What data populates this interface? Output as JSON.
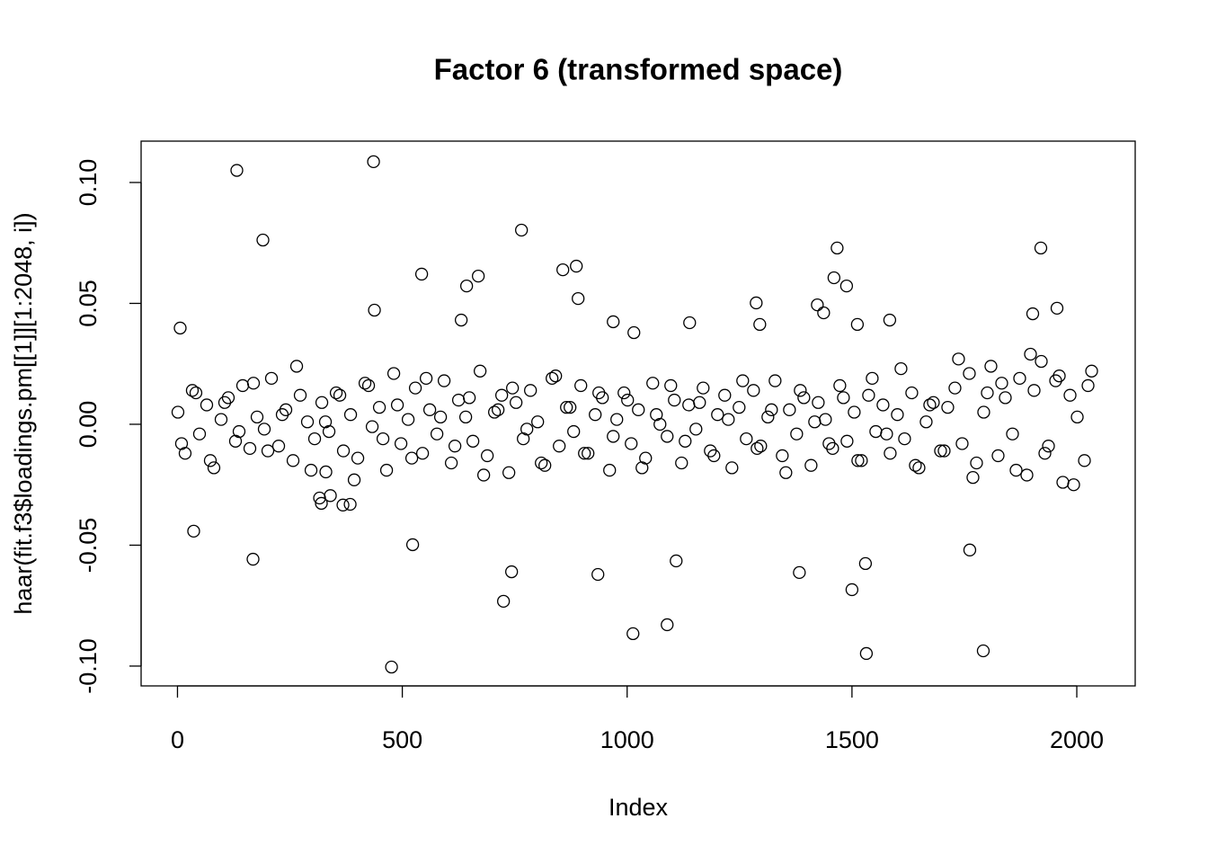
{
  "chart_data": {
    "type": "scatter",
    "title": "Factor 6 (transformed space)",
    "x_label": "Index",
    "y_label": "haar(fit.f3$loadings.pm[[1]][1:2048, i])",
    "color": "#000000",
    "xlim": [
      -80.88,
      2129.88
    ],
    "ylim": [
      -0.1082,
      0.1171
    ],
    "xticks": [
      0,
      500,
      1000,
      1500,
      2000
    ],
    "yticks": [
      {
        "value": -0.1,
        "label": "-0.10"
      },
      {
        "value": -0.05,
        "label": "-0.05"
      },
      {
        "value": 0,
        "label": "0.00"
      },
      {
        "value": 0.05,
        "label": "0.05"
      },
      {
        "value": 0.1,
        "label": "0.10"
      }
    ],
    "x": [
      1,
      17,
      33,
      49,
      65,
      81,
      97,
      113,
      129,
      145,
      161,
      177,
      193,
      209,
      225,
      241,
      257,
      273,
      289,
      305,
      321,
      337,
      353,
      369,
      385,
      401,
      417,
      433,
      449,
      465,
      481,
      497,
      513,
      529,
      545,
      561,
      577,
      593,
      609,
      625,
      641,
      657,
      673,
      689,
      705,
      721,
      737,
      753,
      769,
      785,
      801,
      817,
      833,
      849,
      865,
      881,
      897,
      913,
      929,
      945,
      961,
      977,
      993,
      1009,
      1025,
      1041,
      1057,
      1073,
      1089,
      1105,
      1121,
      1137,
      1153,
      1169,
      1185,
      1201,
      1217,
      1233,
      1249,
      1265,
      1281,
      1297,
      1313,
      1329,
      1345,
      1361,
      1377,
      1393,
      1409,
      1425,
      1441,
      1457,
      1473,
      1489,
      1505,
      1521,
      1537,
      1553,
      1569,
      1585,
      1601,
      1617,
      1633,
      1649,
      1665,
      1681,
      1697,
      1713,
      1729,
      1745,
      1761,
      1777,
      1793,
      1809,
      1825,
      1841,
      1857,
      1873,
      1889,
      1905,
      1921,
      1937,
      1953,
      1969,
      1985,
      2001,
      2017,
      2033,
      9,
      41,
      73,
      105,
      137,
      169,
      201,
      233,
      265,
      297,
      329,
      361,
      393,
      425,
      457,
      489,
      521,
      553,
      585,
      617,
      649,
      681,
      713,
      745,
      777,
      809,
      841,
      873,
      905,
      937,
      969,
      1001,
      1033,
      1065,
      1097,
      1129,
      1161,
      1193,
      1225,
      1257,
      1289,
      1321,
      1353,
      1385,
      1417,
      1449,
      1481,
      1513,
      1545,
      1577,
      1609,
      1641,
      1673,
      1705,
      1737,
      1769,
      1801,
      1833,
      1865,
      1897,
      1929,
      1961,
      1993,
      2025,
      132,
      436,
      190,
      765,
      476,
      1013,
      1089,
      1532,
      1792,
      1467,
      1920,
      543,
      669,
      887,
      857,
      643,
      1460,
      1488,
      168,
      36,
      725,
      743,
      935,
      1500,
      1530,
      1383,
      1762,
      1109,
      523,
      438,
      1902,
      1956,
      6,
      1287,
      1295,
      1584,
      1423,
      1437,
      1512,
      1139,
      631,
      969,
      1015,
      891,
      316,
      320,
      340,
      368,
      384,
      330
    ],
    "values": [
      0.005,
      -0.012,
      0.014,
      -0.004,
      0.008,
      -0.018,
      0.002,
      0.011,
      -0.007,
      0.016,
      -0.01,
      0.003,
      -0.002,
      0.019,
      -0.009,
      0.006,
      -0.015,
      0.012,
      0.001,
      -0.006,
      0.009,
      -0.003,
      0.013,
      -0.011,
      0.004,
      -0.014,
      0.017,
      -0.001,
      0.007,
      -0.019,
      0.021,
      -0.008,
      0.002,
      0.015,
      -0.012,
      0.006,
      -0.004,
      0.018,
      -0.016,
      0.01,
      0.003,
      -0.007,
      0.022,
      -0.013,
      0.005,
      0.012,
      -0.02,
      0.009,
      -0.006,
      0.014,
      0.001,
      -0.017,
      0.019,
      -0.009,
      0.007,
      -0.003,
      0.016,
      -0.012,
      0.004,
      0.011,
      -0.019,
      0.002,
      0.013,
      -0.008,
      0.006,
      -0.014,
      0.017,
      0.0,
      -0.005,
      0.01,
      -0.016,
      0.008,
      -0.002,
      0.015,
      -0.011,
      0.004,
      0.012,
      -0.018,
      0.007,
      -0.006,
      0.014,
      -0.009,
      0.003,
      0.018,
      -0.013,
      0.006,
      -0.004,
      0.011,
      -0.017,
      0.009,
      0.002,
      -0.01,
      0.016,
      -0.007,
      0.005,
      -0.015,
      0.012,
      -0.003,
      0.008,
      -0.012,
      0.004,
      -0.006,
      0.013,
      -0.018,
      0.001,
      0.009,
      -0.011,
      0.007,
      0.015,
      -0.008,
      0.021,
      -0.016,
      0.005,
      0.024,
      -0.013,
      0.011,
      -0.004,
      0.019,
      -0.021,
      0.014,
      0.026,
      -0.009,
      0.018,
      -0.024,
      0.012,
      0.003,
      -0.015,
      0.022,
      -0.008,
      0.013,
      -0.015,
      0.009,
      -0.003,
      0.017,
      -0.011,
      0.004,
      0.024,
      -0.019,
      0.001,
      0.012,
      -0.023,
      0.016,
      -0.006,
      0.008,
      -0.014,
      0.019,
      0.003,
      -0.009,
      0.011,
      -0.021,
      0.006,
      0.015,
      -0.002,
      -0.016,
      0.02,
      0.007,
      -0.012,
      0.013,
      -0.005,
      0.01,
      -0.018,
      0.004,
      0.016,
      -0.007,
      0.009,
      -0.013,
      0.002,
      0.018,
      -0.01,
      0.006,
      -0.02,
      0.014,
      0.001,
      -0.008,
      0.011,
      -0.015,
      0.019,
      -0.004,
      0.023,
      -0.017,
      0.008,
      -0.011,
      0.027,
      -0.022,
      0.013,
      0.017,
      -0.019,
      0.029,
      -0.012,
      0.02,
      -0.025,
      0.016,
      0.105,
      0.1086,
      0.0762,
      0.0803,
      -0.1004,
      -0.0866,
      -0.0829,
      -0.0948,
      -0.0937,
      0.0729,
      0.0729,
      0.0621,
      0.0613,
      0.0654,
      0.0639,
      0.0572,
      0.0606,
      0.0572,
      -0.0558,
      -0.0442,
      -0.0732,
      -0.061,
      -0.0621,
      -0.0684,
      -0.0576,
      -0.0613,
      -0.052,
      -0.0565,
      -0.0498,
      0.0472,
      0.0457,
      0.048,
      0.0398,
      0.0502,
      0.0413,
      0.0431,
      0.0494,
      0.0461,
      0.0413,
      0.042,
      0.0431,
      0.0424,
      0.0379,
      0.052,
      -0.0305,
      -0.0327,
      -0.0295,
      -0.0334,
      -0.0331,
      -0.0197
    ]
  }
}
